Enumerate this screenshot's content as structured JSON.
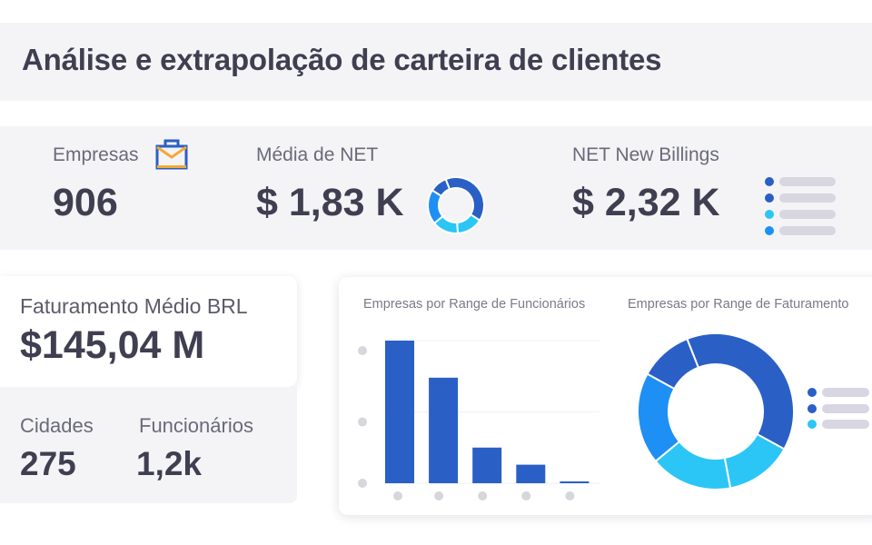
{
  "header": {
    "title": "Análise e extrapolação de carteira de clientes"
  },
  "kpis": {
    "empresas": {
      "label": "Empresas",
      "value": "906",
      "icon": "briefcase-icon"
    },
    "media_net": {
      "label": "Média de NET",
      "value": "$ 1,83 K",
      "icon": "donut-chart-icon"
    },
    "net_new_billings": {
      "label": "NET New Billings",
      "value": "$ 2,32 K",
      "icon": "list-legend-icon"
    }
  },
  "faturamento": {
    "label": "Faturamento Médio BRL",
    "value": "$145,04 M"
  },
  "cidades": {
    "label": "Cidades",
    "value": "275"
  },
  "funcionarios": {
    "label": "Funcionários",
    "value": "1,2k"
  },
  "colors": {
    "dark_blue": "#2a5fc6",
    "mid_blue": "#1e8ff5",
    "cyan": "#2bc6f5",
    "text_dark": "#3f3f51",
    "panel_gray": "#f4f4f7"
  },
  "chart_data": [
    {
      "type": "bar",
      "title": "Empresas por Range de Funcionários",
      "categories": [
        "",
        "",
        "",
        "",
        ""
      ],
      "values": [
        100,
        74,
        25,
        13,
        1
      ],
      "ylim": [
        0,
        100
      ],
      "grid": true
    },
    {
      "type": "pie",
      "title": "Empresas por Range de Faturamento",
      "donut": true,
      "values": [
        39,
        14,
        17,
        19,
        11
      ],
      "colors": [
        "#2a5fc6",
        "#2bc6f5",
        "#2bc6f5",
        "#1e8ff5",
        "#2a5fc6"
      ],
      "legend": "right"
    }
  ]
}
